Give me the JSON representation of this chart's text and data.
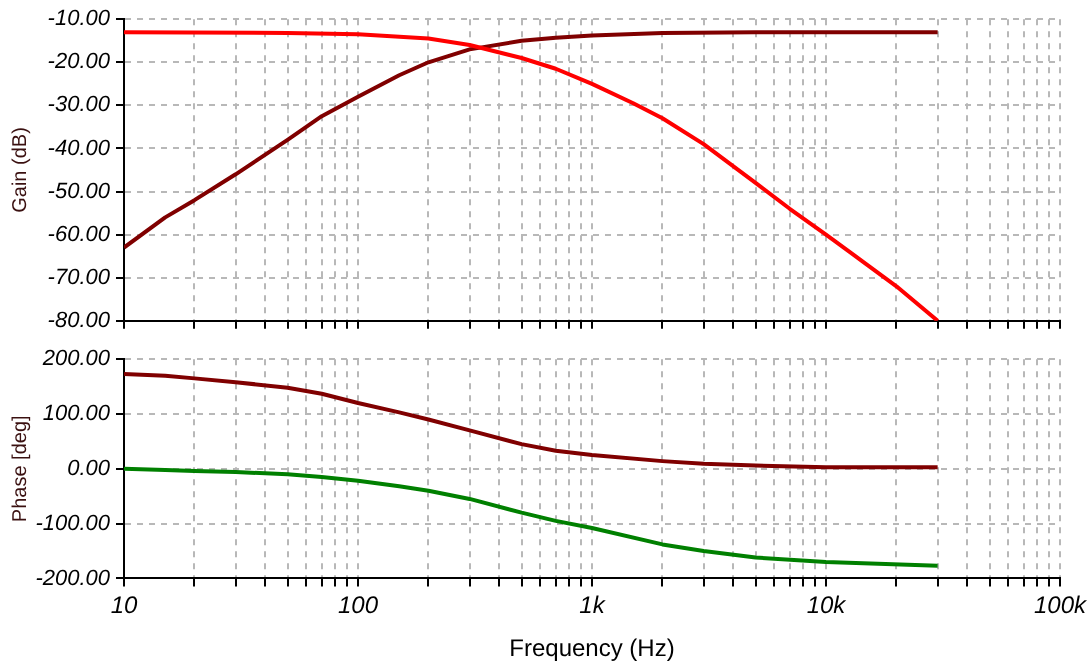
{
  "chart_data": [
    {
      "type": "line",
      "ylabel": "Gain (dB)",
      "log": "x",
      "grid": true,
      "legend": false,
      "tick_labels": "y",
      "xlim": [
        10,
        100000
      ],
      "ylim": [
        -80,
        -10
      ],
      "xticks": [
        {
          "value": 10,
          "label": null
        },
        {
          "value": 20,
          "label": null
        },
        {
          "value": 30,
          "label": null
        },
        {
          "value": 40,
          "label": null
        },
        {
          "value": 50,
          "label": null
        },
        {
          "value": 60,
          "label": null
        },
        {
          "value": 70,
          "label": null
        },
        {
          "value": 80,
          "label": null
        },
        {
          "value": 90,
          "label": null
        },
        {
          "value": 100,
          "label": null
        },
        {
          "value": 200,
          "label": null
        },
        {
          "value": 300,
          "label": null
        },
        {
          "value": 400,
          "label": null
        },
        {
          "value": 500,
          "label": null
        },
        {
          "value": 600,
          "label": null
        },
        {
          "value": 700,
          "label": null
        },
        {
          "value": 800,
          "label": null
        },
        {
          "value": 900,
          "label": null
        },
        {
          "value": 1000,
          "label": null
        },
        {
          "value": 2000,
          "label": null
        },
        {
          "value": 3000,
          "label": null
        },
        {
          "value": 4000,
          "label": null
        },
        {
          "value": 5000,
          "label": null
        },
        {
          "value": 6000,
          "label": null
        },
        {
          "value": 7000,
          "label": null
        },
        {
          "value": 8000,
          "label": null
        },
        {
          "value": 9000,
          "label": null
        },
        {
          "value": 10000,
          "label": null
        },
        {
          "value": 20000,
          "label": null
        },
        {
          "value": 30000,
          "label": null
        },
        {
          "value": 40000,
          "label": null
        },
        {
          "value": 50000,
          "label": null
        },
        {
          "value": 60000,
          "label": null
        },
        {
          "value": 70000,
          "label": null
        },
        {
          "value": 80000,
          "label": null
        },
        {
          "value": 90000,
          "label": null
        },
        {
          "value": 100000,
          "label": null
        }
      ],
      "yticks": [
        {
          "value": -80,
          "label": "-80.00"
        },
        {
          "value": -70,
          "label": "-70.00"
        },
        {
          "value": -60,
          "label": "-60.00"
        },
        {
          "value": -50,
          "label": "-50.00"
        },
        {
          "value": -40,
          "label": "-40.00"
        },
        {
          "value": -30,
          "label": "-30.00"
        },
        {
          "value": -20,
          "label": "-20.00"
        },
        {
          "value": -10,
          "label": "-10.00"
        }
      ],
      "series": [
        {
          "color": "#ff0000",
          "x": [
            10,
            50,
            100,
            200,
            300,
            500,
            700,
            1000,
            1500,
            2000,
            3000,
            5000,
            7000,
            10000,
            15000,
            20000,
            30000
          ],
          "values": [
            -13,
            -13.2,
            -13.5,
            -14.5,
            -16,
            -19,
            -21.5,
            -25,
            -29.5,
            -33,
            -39,
            -48,
            -54,
            -60,
            -67,
            -72,
            -80
          ]
        },
        {
          "color": "#800000",
          "x": [
            10,
            15,
            20,
            30,
            50,
            70,
            100,
            150,
            200,
            300,
            500,
            700,
            1000,
            2000,
            5000,
            10000,
            30000
          ],
          "values": [
            -63,
            -56,
            -52,
            -46,
            -38,
            -32.5,
            -28,
            -23,
            -20,
            -17,
            -15,
            -14.3,
            -13.8,
            -13.2,
            -13,
            -13,
            -13
          ]
        }
      ]
    },
    {
      "type": "line",
      "xlabel": "Frequency (Hz)",
      "ylabel": "Phase [deg]",
      "log": "x",
      "grid": true,
      "legend": false,
      "xlim": [
        10,
        100000
      ],
      "ylim": [
        -200,
        200
      ],
      "xticks": [
        10,
        {
          "value": 20,
          "label": null
        },
        {
          "value": 30,
          "label": null
        },
        {
          "value": 40,
          "label": null
        },
        {
          "value": 50,
          "label": null
        },
        {
          "value": 60,
          "label": null
        },
        {
          "value": 70,
          "label": null
        },
        {
          "value": 80,
          "label": null
        },
        {
          "value": 90,
          "label": null
        },
        100,
        {
          "value": 200,
          "label": null
        },
        {
          "value": 300,
          "label": null
        },
        {
          "value": 400,
          "label": null
        },
        {
          "value": 500,
          "label": null
        },
        {
          "value": 600,
          "label": null
        },
        {
          "value": 700,
          "label": null
        },
        {
          "value": 800,
          "label": null
        },
        {
          "value": 900,
          "label": null
        },
        {
          "value": 1000,
          "label": "1k"
        },
        {
          "value": 2000,
          "label": null
        },
        {
          "value": 3000,
          "label": null
        },
        {
          "value": 4000,
          "label": null
        },
        {
          "value": 5000,
          "label": null
        },
        {
          "value": 6000,
          "label": null
        },
        {
          "value": 7000,
          "label": null
        },
        {
          "value": 8000,
          "label": null
        },
        {
          "value": 9000,
          "label": null
        },
        {
          "value": 10000,
          "label": "10k"
        },
        {
          "value": 20000,
          "label": null
        },
        {
          "value": 30000,
          "label": null
        },
        {
          "value": 40000,
          "label": null
        },
        {
          "value": 50000,
          "label": null
        },
        {
          "value": 60000,
          "label": null
        },
        {
          "value": 70000,
          "label": null
        },
        {
          "value": 80000,
          "label": null
        },
        {
          "value": 90000,
          "label": null
        },
        {
          "value": 100000,
          "label": "100k"
        }
      ],
      "yticks": [
        {
          "value": -200,
          "label": "-200.00"
        },
        {
          "value": -100,
          "label": "-100.00"
        },
        {
          "value": 0,
          "label": "0.00"
        },
        {
          "value": 100,
          "label": "100.00"
        },
        {
          "value": 200,
          "label": "200.00"
        }
      ],
      "series": [
        {
          "color": "#800000",
          "x": [
            10,
            15,
            20,
            30,
            50,
            70,
            100,
            150,
            200,
            300,
            500,
            700,
            1000,
            2000,
            3000,
            5000,
            10000,
            30000
          ],
          "values": [
            173,
            170,
            165,
            158,
            148,
            137,
            120,
            103,
            90,
            70,
            45,
            33,
            25,
            14,
            9,
            6,
            3,
            3
          ]
        },
        {
          "color": "#008000",
          "x": [
            10,
            15,
            20,
            30,
            50,
            70,
            100,
            150,
            200,
            300,
            500,
            700,
            1000,
            2000,
            3000,
            5000,
            10000,
            30000
          ],
          "values": [
            0,
            -2,
            -4,
            -6,
            -10,
            -15,
            -22,
            -32,
            -40,
            -55,
            -80,
            -95,
            -108,
            -138,
            -150,
            -162,
            -170,
            -177
          ]
        }
      ]
    }
  ]
}
